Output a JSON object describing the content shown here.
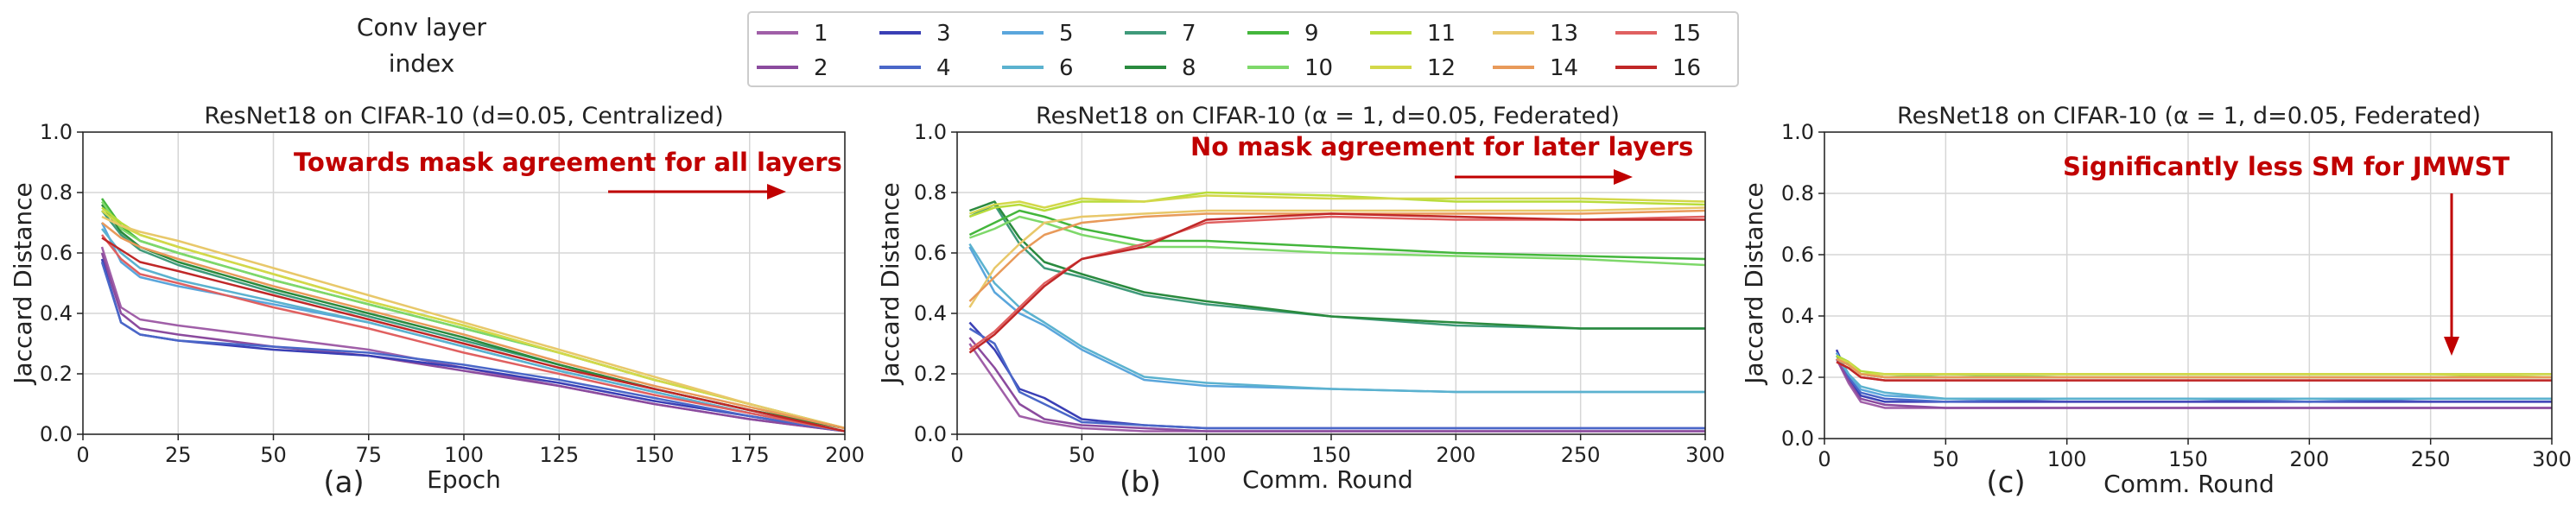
{
  "legend": {
    "title_line1": "Conv layer",
    "title_line2": "index",
    "entries": [
      "1",
      "2",
      "3",
      "4",
      "5",
      "6",
      "7",
      "8",
      "9",
      "10",
      "11",
      "12",
      "13",
      "14",
      "15",
      "16"
    ]
  },
  "colors": [
    "#a05fa8",
    "#8b4b9e",
    "#3a3fb5",
    "#4a67c8",
    "#5aa6dc",
    "#5bb2cf",
    "#3f9a7a",
    "#2a8a3e",
    "#44b63c",
    "#7ed86a",
    "#b8dc3a",
    "#d3d84a",
    "#e8c86a",
    "#e89a5a",
    "#e06060",
    "#c02828"
  ],
  "chart_data": [
    {
      "type": "line",
      "panel_label": "(a)",
      "title": "ResNet18 on CIFAR-10 (d=0.05, Centralized)",
      "xlabel": "Epoch",
      "ylabel": "Jaccard Distance",
      "xlim": [
        0,
        200
      ],
      "ylim": [
        0.0,
        1.0
      ],
      "xticks": [
        0,
        25,
        50,
        75,
        100,
        125,
        150,
        175,
        200
      ],
      "yticks": [
        0.0,
        0.2,
        0.4,
        0.6,
        0.8,
        1.0
      ],
      "annotation": "Towards mask agreement for all layers",
      "x": [
        5,
        10,
        15,
        25,
        50,
        75,
        100,
        125,
        150,
        175,
        200
      ],
      "series": [
        {
          "values": [
            0.62,
            0.42,
            0.38,
            0.36,
            0.32,
            0.28,
            0.22,
            0.16,
            0.1,
            0.05,
            0.01
          ]
        },
        {
          "values": [
            0.6,
            0.4,
            0.35,
            0.33,
            0.29,
            0.26,
            0.21,
            0.16,
            0.1,
            0.05,
            0.01
          ]
        },
        {
          "values": [
            0.58,
            0.37,
            0.33,
            0.31,
            0.28,
            0.26,
            0.22,
            0.17,
            0.11,
            0.06,
            0.01
          ]
        },
        {
          "values": [
            0.57,
            0.37,
            0.33,
            0.31,
            0.29,
            0.27,
            0.23,
            0.18,
            0.12,
            0.06,
            0.01
          ]
        },
        {
          "values": [
            0.7,
            0.57,
            0.52,
            0.49,
            0.43,
            0.37,
            0.29,
            0.21,
            0.14,
            0.07,
            0.01
          ]
        },
        {
          "values": [
            0.68,
            0.6,
            0.55,
            0.51,
            0.44,
            0.37,
            0.29,
            0.21,
            0.14,
            0.07,
            0.01
          ]
        },
        {
          "values": [
            0.74,
            0.66,
            0.61,
            0.56,
            0.47,
            0.39,
            0.31,
            0.23,
            0.15,
            0.08,
            0.02
          ]
        },
        {
          "values": [
            0.76,
            0.67,
            0.62,
            0.57,
            0.48,
            0.4,
            0.32,
            0.23,
            0.15,
            0.08,
            0.02
          ]
        },
        {
          "values": [
            0.78,
            0.69,
            0.64,
            0.6,
            0.51,
            0.43,
            0.35,
            0.27,
            0.18,
            0.1,
            0.02
          ]
        },
        {
          "values": [
            0.77,
            0.68,
            0.64,
            0.6,
            0.51,
            0.43,
            0.35,
            0.27,
            0.18,
            0.1,
            0.02
          ]
        },
        {
          "values": [
            0.75,
            0.7,
            0.66,
            0.62,
            0.53,
            0.44,
            0.36,
            0.27,
            0.18,
            0.1,
            0.02
          ]
        },
        {
          "values": [
            0.74,
            0.69,
            0.66,
            0.62,
            0.53,
            0.44,
            0.36,
            0.27,
            0.18,
            0.1,
            0.02
          ]
        },
        {
          "values": [
            0.72,
            0.69,
            0.67,
            0.64,
            0.55,
            0.46,
            0.37,
            0.28,
            0.19,
            0.1,
            0.02
          ]
        },
        {
          "values": [
            0.7,
            0.65,
            0.62,
            0.58,
            0.49,
            0.41,
            0.33,
            0.24,
            0.16,
            0.09,
            0.02
          ]
        },
        {
          "values": [
            0.66,
            0.58,
            0.53,
            0.5,
            0.42,
            0.35,
            0.27,
            0.2,
            0.13,
            0.07,
            0.01
          ]
        },
        {
          "values": [
            0.65,
            0.61,
            0.57,
            0.54,
            0.46,
            0.38,
            0.3,
            0.22,
            0.15,
            0.08,
            0.01
          ]
        }
      ]
    },
    {
      "type": "line",
      "panel_label": "(b)",
      "title": "ResNet18 on CIFAR-10 (α = 1, d=0.05, Federated)",
      "xlabel": "Comm. Round",
      "ylabel": "Jaccard Distance",
      "xlim": [
        0,
        300
      ],
      "ylim": [
        0.0,
        1.0
      ],
      "xticks": [
        0,
        50,
        100,
        150,
        200,
        250,
        300
      ],
      "yticks": [
        0.0,
        0.2,
        0.4,
        0.6,
        0.8,
        1.0
      ],
      "annotation": "No mask agreement for later layers",
      "x": [
        5,
        15,
        25,
        35,
        50,
        75,
        100,
        150,
        200,
        250,
        300
      ],
      "series": [
        {
          "values": [
            0.3,
            0.18,
            0.06,
            0.04,
            0.02,
            0.01,
            0.01,
            0.01,
            0.01,
            0.01,
            0.01
          ]
        },
        {
          "values": [
            0.32,
            0.22,
            0.1,
            0.05,
            0.03,
            0.02,
            0.01,
            0.01,
            0.01,
            0.01,
            0.01
          ]
        },
        {
          "values": [
            0.37,
            0.28,
            0.15,
            0.12,
            0.05,
            0.03,
            0.02,
            0.02,
            0.02,
            0.02,
            0.02
          ]
        },
        {
          "values": [
            0.35,
            0.3,
            0.14,
            0.1,
            0.04,
            0.03,
            0.02,
            0.02,
            0.02,
            0.02,
            0.02
          ]
        },
        {
          "values": [
            0.62,
            0.47,
            0.4,
            0.36,
            0.28,
            0.18,
            0.16,
            0.15,
            0.14,
            0.14,
            0.14
          ]
        },
        {
          "values": [
            0.63,
            0.5,
            0.42,
            0.37,
            0.29,
            0.19,
            0.17,
            0.15,
            0.14,
            0.14,
            0.14
          ]
        },
        {
          "values": [
            0.72,
            0.76,
            0.63,
            0.55,
            0.52,
            0.46,
            0.43,
            0.39,
            0.36,
            0.35,
            0.35
          ]
        },
        {
          "values": [
            0.74,
            0.77,
            0.65,
            0.57,
            0.53,
            0.47,
            0.44,
            0.39,
            0.37,
            0.35,
            0.35
          ]
        },
        {
          "values": [
            0.66,
            0.7,
            0.74,
            0.72,
            0.68,
            0.64,
            0.64,
            0.62,
            0.6,
            0.59,
            0.58
          ]
        },
        {
          "values": [
            0.65,
            0.68,
            0.72,
            0.7,
            0.66,
            0.62,
            0.62,
            0.6,
            0.59,
            0.58,
            0.56
          ]
        },
        {
          "values": [
            0.72,
            0.75,
            0.76,
            0.74,
            0.77,
            0.77,
            0.8,
            0.79,
            0.77,
            0.77,
            0.76
          ]
        },
        {
          "values": [
            0.73,
            0.76,
            0.77,
            0.75,
            0.78,
            0.77,
            0.79,
            0.78,
            0.78,
            0.78,
            0.77
          ]
        },
        {
          "values": [
            0.42,
            0.55,
            0.63,
            0.7,
            0.72,
            0.73,
            0.74,
            0.74,
            0.74,
            0.74,
            0.75
          ]
        },
        {
          "values": [
            0.44,
            0.52,
            0.6,
            0.66,
            0.7,
            0.72,
            0.73,
            0.73,
            0.73,
            0.73,
            0.74
          ]
        },
        {
          "values": [
            0.28,
            0.34,
            0.42,
            0.5,
            0.58,
            0.63,
            0.7,
            0.72,
            0.71,
            0.71,
            0.72
          ]
        },
        {
          "values": [
            0.27,
            0.33,
            0.41,
            0.49,
            0.58,
            0.62,
            0.71,
            0.73,
            0.72,
            0.71,
            0.71
          ]
        }
      ]
    },
    {
      "type": "line",
      "panel_label": "(c)",
      "title": "ResNet18 on CIFAR-10 (α = 1, d=0.05, Federated)",
      "xlabel": "Comm. Round",
      "ylabel": "Jaccard Distance",
      "xlim": [
        0,
        300
      ],
      "ylim": [
        0.0,
        1.0
      ],
      "xticks": [
        0,
        50,
        100,
        150,
        200,
        250,
        300
      ],
      "yticks": [
        0.0,
        0.2,
        0.4,
        0.6,
        0.8,
        1.0
      ],
      "annotation": "Significantly less SM for JMWST",
      "x": [
        5,
        10,
        15,
        25,
        50,
        100,
        150,
        200,
        250,
        300
      ],
      "series": [
        {
          "values": [
            0.26,
            0.18,
            0.12,
            0.1,
            0.1,
            0.1,
            0.1,
            0.1,
            0.1,
            0.1
          ]
        },
        {
          "values": [
            0.26,
            0.19,
            0.13,
            0.11,
            0.1,
            0.1,
            0.1,
            0.1,
            0.1,
            0.1
          ]
        },
        {
          "values": [
            0.29,
            0.2,
            0.14,
            0.12,
            0.12,
            0.12,
            0.12,
            0.12,
            0.12,
            0.12
          ]
        },
        {
          "values": [
            0.28,
            0.2,
            0.15,
            0.13,
            0.12,
            0.13,
            0.13,
            0.12,
            0.13,
            0.13
          ]
        },
        {
          "values": [
            0.28,
            0.21,
            0.16,
            0.14,
            0.13,
            0.13,
            0.13,
            0.13,
            0.13,
            0.13
          ]
        },
        {
          "values": [
            0.27,
            0.21,
            0.17,
            0.15,
            0.13,
            0.13,
            0.13,
            0.13,
            0.13,
            0.13
          ]
        },
        {
          "values": [
            0.27,
            0.24,
            0.21,
            0.2,
            0.2,
            0.2,
            0.2,
            0.2,
            0.2,
            0.2
          ]
        },
        {
          "values": [
            0.27,
            0.25,
            0.21,
            0.2,
            0.2,
            0.2,
            0.2,
            0.2,
            0.2,
            0.2
          ]
        },
        {
          "values": [
            0.27,
            0.25,
            0.21,
            0.21,
            0.21,
            0.21,
            0.21,
            0.21,
            0.21,
            0.21
          ]
        },
        {
          "values": [
            0.26,
            0.24,
            0.21,
            0.2,
            0.21,
            0.2,
            0.2,
            0.2,
            0.2,
            0.2
          ]
        },
        {
          "values": [
            0.27,
            0.25,
            0.22,
            0.21,
            0.21,
            0.21,
            0.21,
            0.21,
            0.21,
            0.2
          ]
        },
        {
          "values": [
            0.26,
            0.25,
            0.21,
            0.21,
            0.21,
            0.21,
            0.21,
            0.21,
            0.21,
            0.21
          ]
        },
        {
          "values": [
            0.26,
            0.24,
            0.21,
            0.2,
            0.2,
            0.2,
            0.2,
            0.2,
            0.2,
            0.2
          ]
        },
        {
          "values": [
            0.26,
            0.24,
            0.21,
            0.2,
            0.2,
            0.2,
            0.2,
            0.2,
            0.2,
            0.2
          ]
        },
        {
          "values": [
            0.25,
            0.23,
            0.2,
            0.19,
            0.19,
            0.19,
            0.19,
            0.19,
            0.19,
            0.19
          ]
        },
        {
          "values": [
            0.25,
            0.23,
            0.2,
            0.19,
            0.19,
            0.19,
            0.19,
            0.19,
            0.19,
            0.19
          ]
        }
      ]
    }
  ]
}
